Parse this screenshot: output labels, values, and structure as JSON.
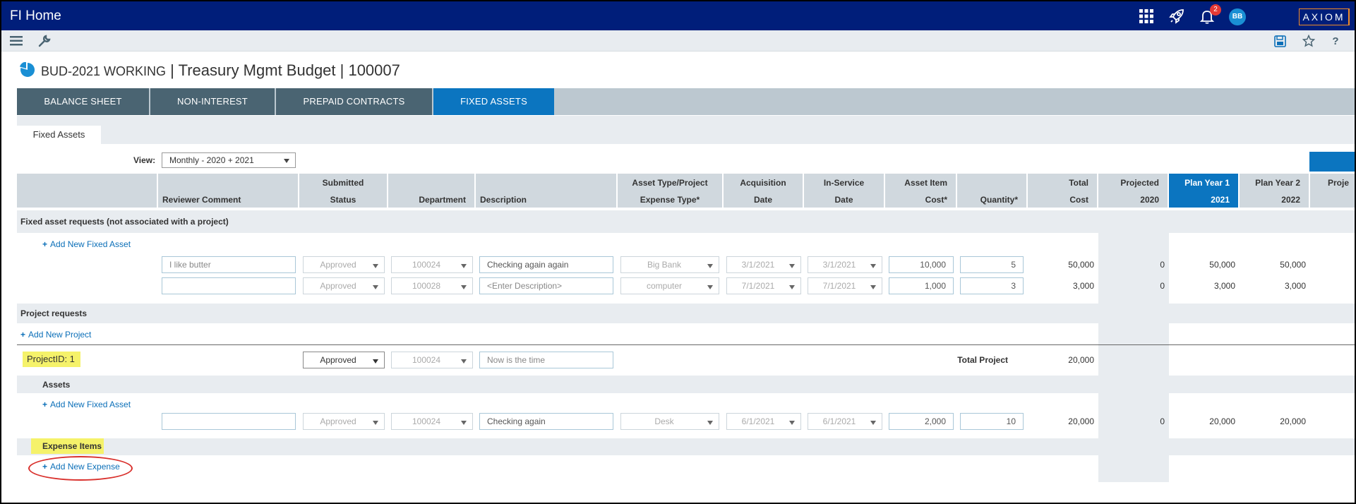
{
  "app": {
    "title": "FI Home",
    "notification_count": "2",
    "avatar_initials": "BB",
    "logo_text": "AXIOM",
    "accent_color": "#0b75c0",
    "nav_color": "#001e7a"
  },
  "page": {
    "title_main": "BUD-2021 WORKING",
    "title_rest": " | Treasury Mgmt Budget | 100007"
  },
  "tabs": [
    {
      "label": "BALANCE SHEET"
    },
    {
      "label": "NON-INTEREST"
    },
    {
      "label": "PREPAID CONTRACTS"
    },
    {
      "label": "FIXED ASSETS",
      "active": true
    }
  ],
  "subtab": {
    "label": "Fixed Assets"
  },
  "view": {
    "label": "View:",
    "value": "Monthly - 2020 + 2021"
  },
  "columns": [
    {
      "l1": "",
      "l2": "Reviewer Comment"
    },
    {
      "l1": "Submitted",
      "l2": "Status"
    },
    {
      "l1": "",
      "l2": "Department"
    },
    {
      "l1": "",
      "l2": "Description"
    },
    {
      "l1": "Asset Type/Project",
      "l2": "Expense Type*"
    },
    {
      "l1": "Acquisition",
      "l2": "Date"
    },
    {
      "l1": "In-Service",
      "l2": "Date"
    },
    {
      "l1": "Asset Item",
      "l2": "Cost*"
    },
    {
      "l1": "",
      "l2": "Quantity*"
    },
    {
      "l1": "Total",
      "l2": "Cost"
    },
    {
      "l1": "Projected",
      "l2": "2020"
    },
    {
      "l1": "Plan Year 1",
      "l2": "2021"
    },
    {
      "l1": "Plan Year 2",
      "l2": "2022"
    },
    {
      "l1": "Proje",
      "l2": ""
    }
  ],
  "sections": {
    "fixed_requests": "Fixed asset requests (not associated with a project)",
    "add_fixed_asset": "Add New Fixed Asset",
    "project_requests": "Project requests",
    "add_project": "Add New Project",
    "assets": "Assets",
    "expense_items": "Expense Items",
    "add_expense": "Add New Expense"
  },
  "fixed_rows": [
    {
      "comment": "I like butter",
      "status": "Approved",
      "dept": "100024",
      "desc": "Checking again again",
      "type": "Big Bank",
      "acq": "3/1/2021",
      "svc": "3/1/2021",
      "cost": "10,000",
      "qty": "5",
      "total": "50,000",
      "proj2020": "0",
      "y2021": "50,000",
      "y2022": "50,000"
    },
    {
      "comment": "",
      "status": "Approved",
      "dept": "100028",
      "desc": "<Enter Description>",
      "type": "computer",
      "acq": "7/1/2021",
      "svc": "7/1/2021",
      "cost": "1,000",
      "qty": "3",
      "total": "3,000",
      "proj2020": "0",
      "y2021": "3,000",
      "y2022": "3,000"
    }
  ],
  "project": {
    "id_label": "ProjectID: 1",
    "status": "Approved",
    "dept": "100024",
    "desc": "Now is the time",
    "total_label": "Total Project",
    "total_value": "20,000"
  },
  "asset_row": {
    "comment": "",
    "status": "Approved",
    "dept": "100024",
    "desc": "Checking again",
    "type": "Desk",
    "acq": "6/1/2021",
    "svc": "6/1/2021",
    "cost": "2,000",
    "qty": "10",
    "total": "20,000",
    "proj2020": "0",
    "y2021": "20,000",
    "y2022": "20,000"
  }
}
